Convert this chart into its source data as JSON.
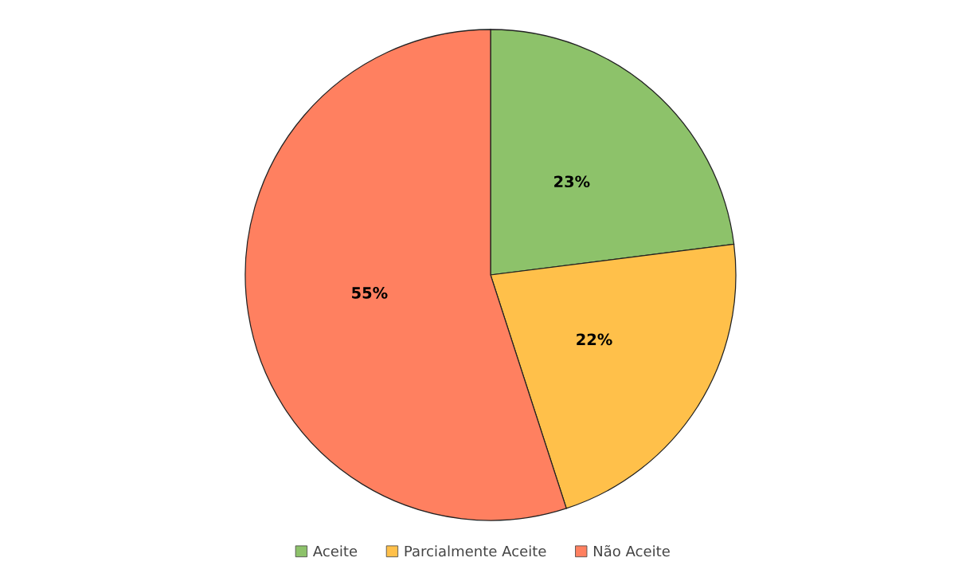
{
  "chart_data": {
    "type": "pie",
    "categories": [
      "Aceite",
      "Parcialmente Aceite",
      "Não Aceite"
    ],
    "values": [
      23,
      22,
      55
    ],
    "colors": [
      "#8dc26a",
      "#ffc04a",
      "#ff8060"
    ],
    "value_labels": [
      "23%",
      "22%",
      "55%"
    ],
    "legend": "bottom"
  }
}
